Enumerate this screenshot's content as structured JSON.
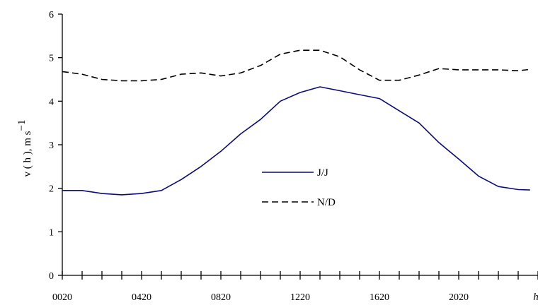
{
  "chart_data": {
    "type": "line",
    "ylabel": "v ( h ), m s",
    "ylabel_sup": "−1",
    "xlabel": "h",
    "ylim": [
      0,
      6
    ],
    "yticks": [
      "0",
      "1",
      "2",
      "3",
      "4",
      "5",
      "6"
    ],
    "x_tick_labels": [
      "0020",
      "0420",
      "0820",
      "1220",
      "1620",
      "2020"
    ],
    "x_tick_label_positions": [
      0,
      4,
      8,
      12,
      16,
      20
    ],
    "x_minor_ticks": 24,
    "grid": false,
    "legend_position": "center",
    "series": [
      {
        "name": "J/J",
        "color": "#0b0b7a",
        "dash": "solid",
        "x": [
          0,
          1,
          2,
          3,
          4,
          5,
          6,
          7,
          8,
          9,
          10,
          11,
          12,
          13,
          14,
          15,
          16,
          17,
          18,
          19,
          20,
          21,
          22,
          23,
          23.6
        ],
        "values": [
          1.95,
          1.95,
          1.88,
          1.85,
          1.88,
          1.95,
          2.2,
          2.5,
          2.85,
          3.25,
          3.58,
          4.0,
          4.2,
          4.33,
          4.24,
          4.15,
          4.06,
          3.78,
          3.5,
          3.05,
          2.67,
          2.28,
          2.04,
          1.97,
          1.96
        ]
      },
      {
        "name": "N/D",
        "color": "#000000",
        "dash": "dashed",
        "x": [
          0,
          1,
          2,
          3,
          4,
          5,
          6,
          7,
          8,
          9,
          10,
          11,
          12,
          13,
          14,
          15,
          16,
          17,
          18,
          19,
          20,
          21,
          22,
          23,
          23.6
        ],
        "values": [
          4.68,
          4.62,
          4.5,
          4.47,
          4.47,
          4.5,
          4.62,
          4.65,
          4.58,
          4.65,
          4.82,
          5.08,
          5.17,
          5.17,
          5.02,
          4.72,
          4.48,
          4.48,
          4.6,
          4.75,
          4.72,
          4.72,
          4.72,
          4.7,
          4.73
        ]
      }
    ]
  }
}
